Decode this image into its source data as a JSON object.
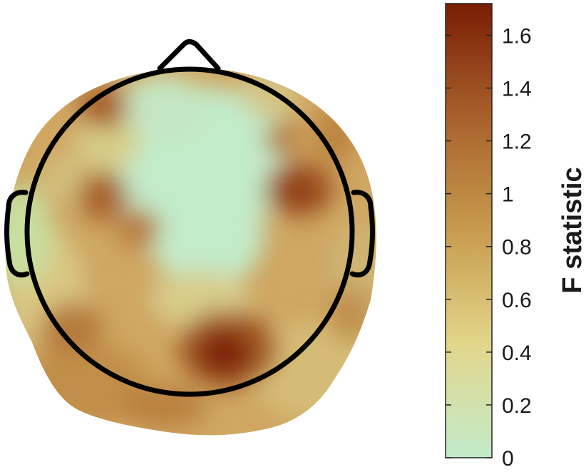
{
  "chart_data": {
    "type": "heatmap",
    "subtype": "topoplot",
    "title": "",
    "colorbar": {
      "label": "F statistic",
      "ticks": [
        0,
        0.2,
        0.4,
        0.6,
        0.8,
        1,
        1.2,
        1.4,
        1.6
      ],
      "tick_labels": [
        "0",
        "0.2",
        "0.4",
        "0.6",
        "0.8",
        "1",
        "1.2",
        "1.4",
        "1.6"
      ],
      "range": [
        0,
        1.72
      ],
      "colormap": [
        "#c2ebc9",
        "#e2d68b",
        "#c89b4e",
        "#a8612b",
        "#7a1d05"
      ]
    },
    "hotspots": [
      {
        "region": "occipital-center",
        "value": 1.7
      },
      {
        "region": "right-temporal",
        "value": 1.45
      },
      {
        "region": "left-frontal",
        "value": 1.2
      },
      {
        "region": "left-central",
        "value": 1.15
      },
      {
        "region": "right-frontal",
        "value": 1.1
      },
      {
        "region": "occipital-left",
        "value": 1.0
      },
      {
        "region": "frontal-midline",
        "value": 0.1
      }
    ]
  }
}
